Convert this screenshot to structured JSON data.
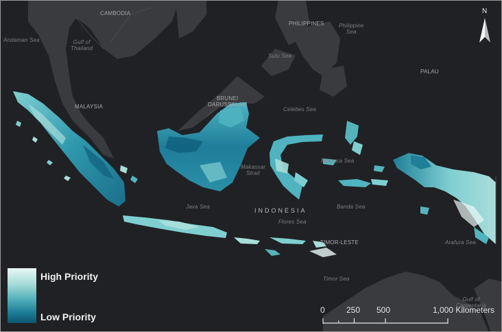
{
  "labels": {
    "cambodia": "CAMBODIA",
    "philippines": "PHILIPPINES",
    "philippine_sea": "Philippine\nSea",
    "andaman_sea": "Andaman Sea",
    "gulf_thailand": "Gulf of\nThailand",
    "sulu_sea": "Sulu Sea",
    "palau": "PALAU",
    "brunei": "BRUNEI\nDARUSSALAM",
    "malaysia": "MALAYSIA",
    "celebes_sea": "Celebes Sea",
    "makassar_strait": "Makassar\nStrait",
    "molucca_sea": "Molucca Sea",
    "java_sea": "Java Sea",
    "indonesia": "INDONESIA",
    "banda_sea": "Banda Sea",
    "flores_sea": "Flores Sea",
    "timor_leste": "TIMOR-LESTE",
    "arafura_sea": "Arafura Sea",
    "timor_sea": "Timor Sea",
    "gulf_carpentaria": "Gulf of\nCarpentaria"
  },
  "legend": {
    "high": "High Priority",
    "low": "Low Priority",
    "colors": {
      "high": "#e9f7f5",
      "mid": "#56b3bb",
      "low": "#0c5470"
    }
  },
  "scale": {
    "ticks": [
      "0",
      "250",
      "500",
      "1,000 Kilometers"
    ]
  },
  "north_arrow": {
    "label": "N",
    "icon": "north-arrow-icon"
  }
}
